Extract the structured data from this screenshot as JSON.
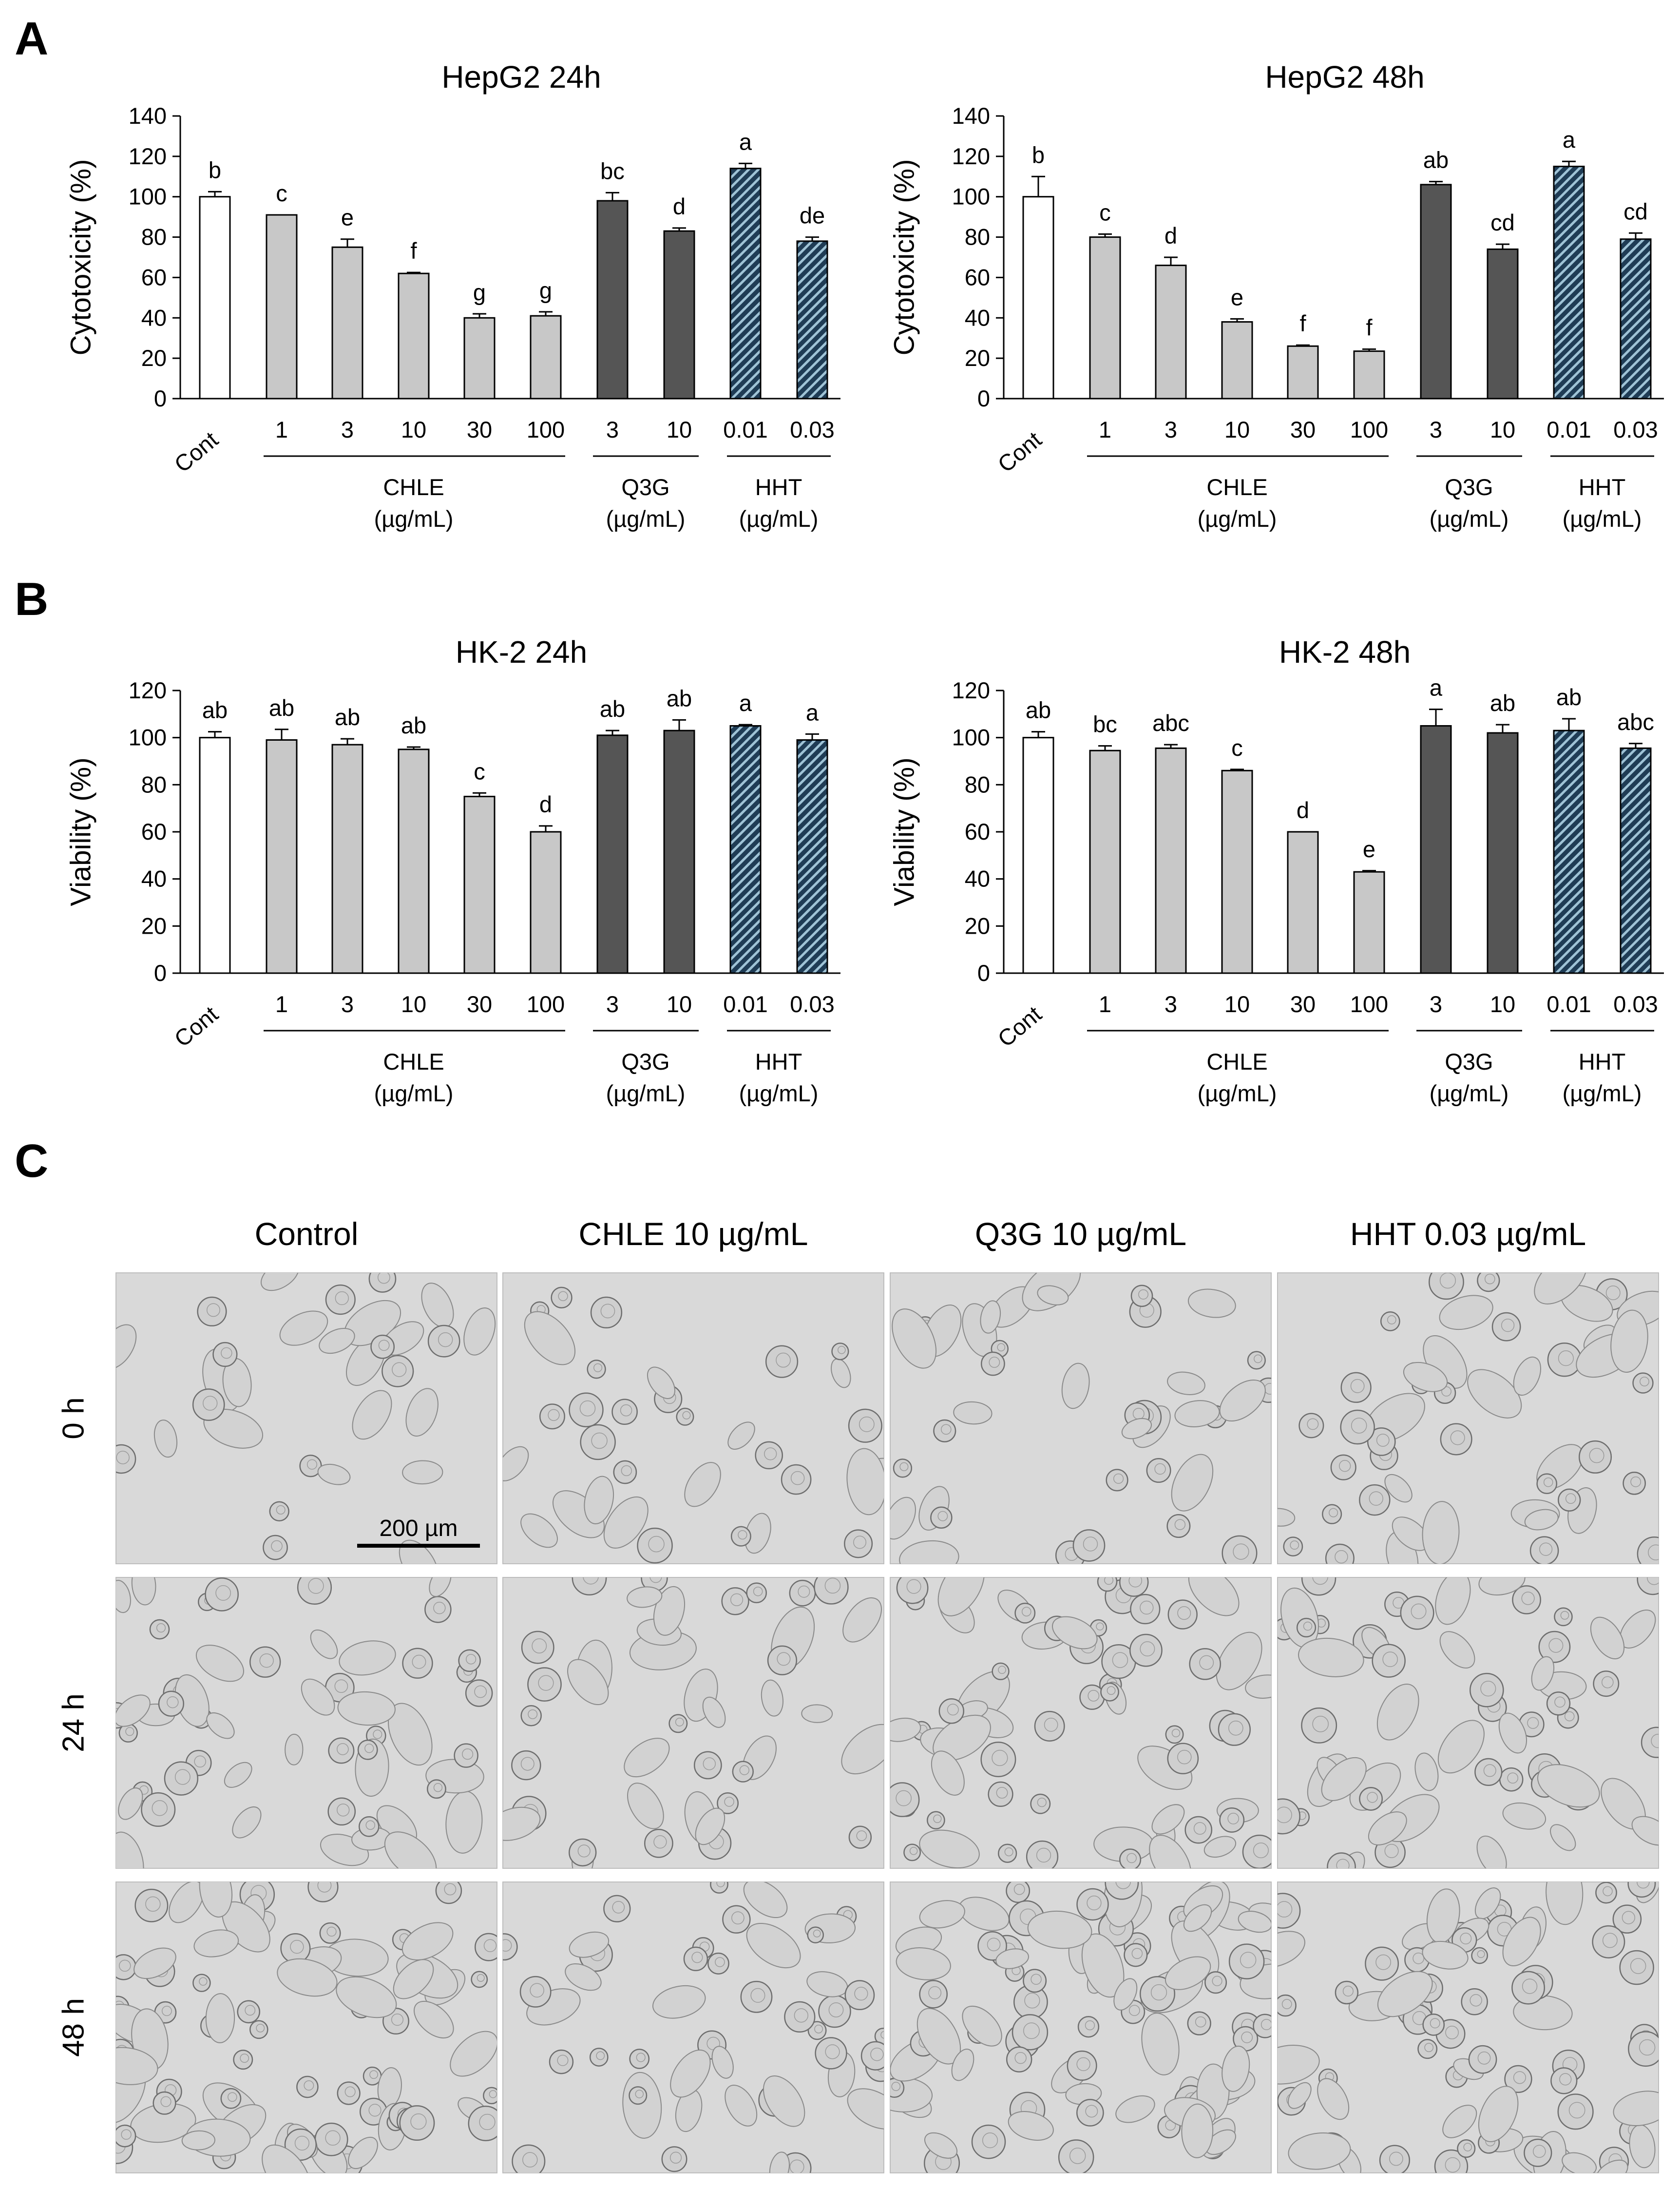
{
  "panel_labels": [
    "A",
    "B",
    "C"
  ],
  "colors": {
    "control": "#ffffff",
    "chle": "#c8c8c8",
    "q3g": "#555555",
    "hht": "#1f3c55",
    "hht_stripe": "#9fc3d6",
    "axis": "#000000"
  },
  "chart_data": [
    {
      "id": "hepg2-24h",
      "type": "bar",
      "title": "HepG2 24h",
      "ylabel": "Cytotoxicity (%)",
      "ylim": [
        0,
        140
      ],
      "yticks": [
        0,
        20,
        40,
        60,
        80,
        100,
        120,
        140
      ],
      "categories": [
        "Cont",
        "1",
        "3",
        "10",
        "30",
        "100",
        "3",
        "10",
        "0.01",
        "0.03"
      ],
      "groups": [
        "control",
        "chle",
        "chle",
        "chle",
        "chle",
        "chle",
        "q3g",
        "q3g",
        "hht",
        "hht"
      ],
      "values": [
        100,
        91,
        75,
        62,
        40,
        41,
        98,
        83,
        114,
        78
      ],
      "errors": [
        2.5,
        0,
        4,
        0.5,
        2,
        2,
        4,
        1.5,
        2.5,
        2
      ],
      "letters": [
        "b",
        "c",
        "e",
        "f",
        "g",
        "g",
        "bc",
        "d",
        "a",
        "de"
      ],
      "group_labels": [
        {
          "name": "CHLE",
          "unit": "(µg/mL)"
        },
        {
          "name": "Q3G",
          "unit": "(µg/mL)"
        },
        {
          "name": "HHT",
          "unit": "(µg/mL)"
        }
      ]
    },
    {
      "id": "hepg2-48h",
      "type": "bar",
      "title": "HepG2 48h",
      "ylabel": "Cytotoxicity (%)",
      "ylim": [
        0,
        140
      ],
      "yticks": [
        0,
        20,
        40,
        60,
        80,
        100,
        120,
        140
      ],
      "categories": [
        "Cont",
        "1",
        "3",
        "10",
        "30",
        "100",
        "3",
        "10",
        "0.01",
        "0.03"
      ],
      "groups": [
        "control",
        "chle",
        "chle",
        "chle",
        "chle",
        "chle",
        "q3g",
        "q3g",
        "hht",
        "hht"
      ],
      "values": [
        100,
        80,
        66,
        38,
        26,
        23.5,
        106,
        74,
        115,
        79
      ],
      "errors": [
        10,
        1.5,
        4,
        1.5,
        0.5,
        1,
        1.5,
        2.5,
        2.5,
        3
      ],
      "letters": [
        "b",
        "c",
        "d",
        "e",
        "f",
        "f",
        "ab",
        "cd",
        "a",
        "cd"
      ],
      "group_labels": [
        {
          "name": "CHLE",
          "unit": "(µg/mL)"
        },
        {
          "name": "Q3G",
          "unit": "(µg/mL)"
        },
        {
          "name": "HHT",
          "unit": "(µg/mL)"
        }
      ]
    },
    {
      "id": "hk2-24h",
      "type": "bar",
      "title": "HK-2 24h",
      "ylabel": "Viability (%)",
      "ylim": [
        0,
        120
      ],
      "yticks": [
        0,
        20,
        40,
        60,
        80,
        100,
        120
      ],
      "categories": [
        "Cont",
        "1",
        "3",
        "10",
        "30",
        "100",
        "3",
        "10",
        "0.01",
        "0.03"
      ],
      "groups": [
        "control",
        "chle",
        "chle",
        "chle",
        "chle",
        "chle",
        "q3g",
        "q3g",
        "hht",
        "hht"
      ],
      "values": [
        100,
        99,
        97,
        95,
        75,
        60,
        101,
        103,
        105,
        99
      ],
      "errors": [
        2.5,
        4.5,
        2.5,
        1,
        1.5,
        2.5,
        2,
        4.5,
        0.5,
        2.5
      ],
      "letters": [
        "ab",
        "ab",
        "ab",
        "ab",
        "c",
        "d",
        "ab",
        "ab",
        "a",
        "a"
      ],
      "group_labels": [
        {
          "name": "CHLE",
          "unit": "(µg/mL)"
        },
        {
          "name": "Q3G",
          "unit": "(µg/mL)"
        },
        {
          "name": "HHT",
          "unit": "(µg/mL)"
        }
      ]
    },
    {
      "id": "hk2-48h",
      "type": "bar",
      "title": "HK-2 48h",
      "ylabel": "Viability (%)",
      "ylim": [
        0,
        120
      ],
      "yticks": [
        0,
        20,
        40,
        60,
        80,
        100,
        120
      ],
      "categories": [
        "Cont",
        "1",
        "3",
        "10",
        "30",
        "100",
        "3",
        "10",
        "0.01",
        "0.03"
      ],
      "groups": [
        "control",
        "chle",
        "chle",
        "chle",
        "chle",
        "chle",
        "q3g",
        "q3g",
        "hht",
        "hht"
      ],
      "values": [
        100,
        94.5,
        95.5,
        86,
        60,
        43,
        105,
        102,
        103,
        95.5
      ],
      "errors": [
        2.5,
        2,
        1.5,
        0.5,
        0,
        0.5,
        7,
        3.5,
        5,
        2
      ],
      "letters": [
        "ab",
        "bc",
        "abc",
        "c",
        "d",
        "e",
        "a",
        "ab",
        "ab",
        "abc"
      ],
      "group_labels": [
        {
          "name": "CHLE",
          "unit": "(µg/mL)"
        },
        {
          "name": "Q3G",
          "unit": "(µg/mL)"
        },
        {
          "name": "HHT",
          "unit": "(µg/mL)"
        }
      ]
    }
  ],
  "micrographs": {
    "columns": [
      "Control",
      "CHLE 10 µg/mL",
      "Q3G 10 µg/mL",
      "HHT 0.03 µg/mL"
    ],
    "rows": [
      "0 h",
      "24 h",
      "48 h"
    ],
    "scale_bar": "200 µm"
  }
}
